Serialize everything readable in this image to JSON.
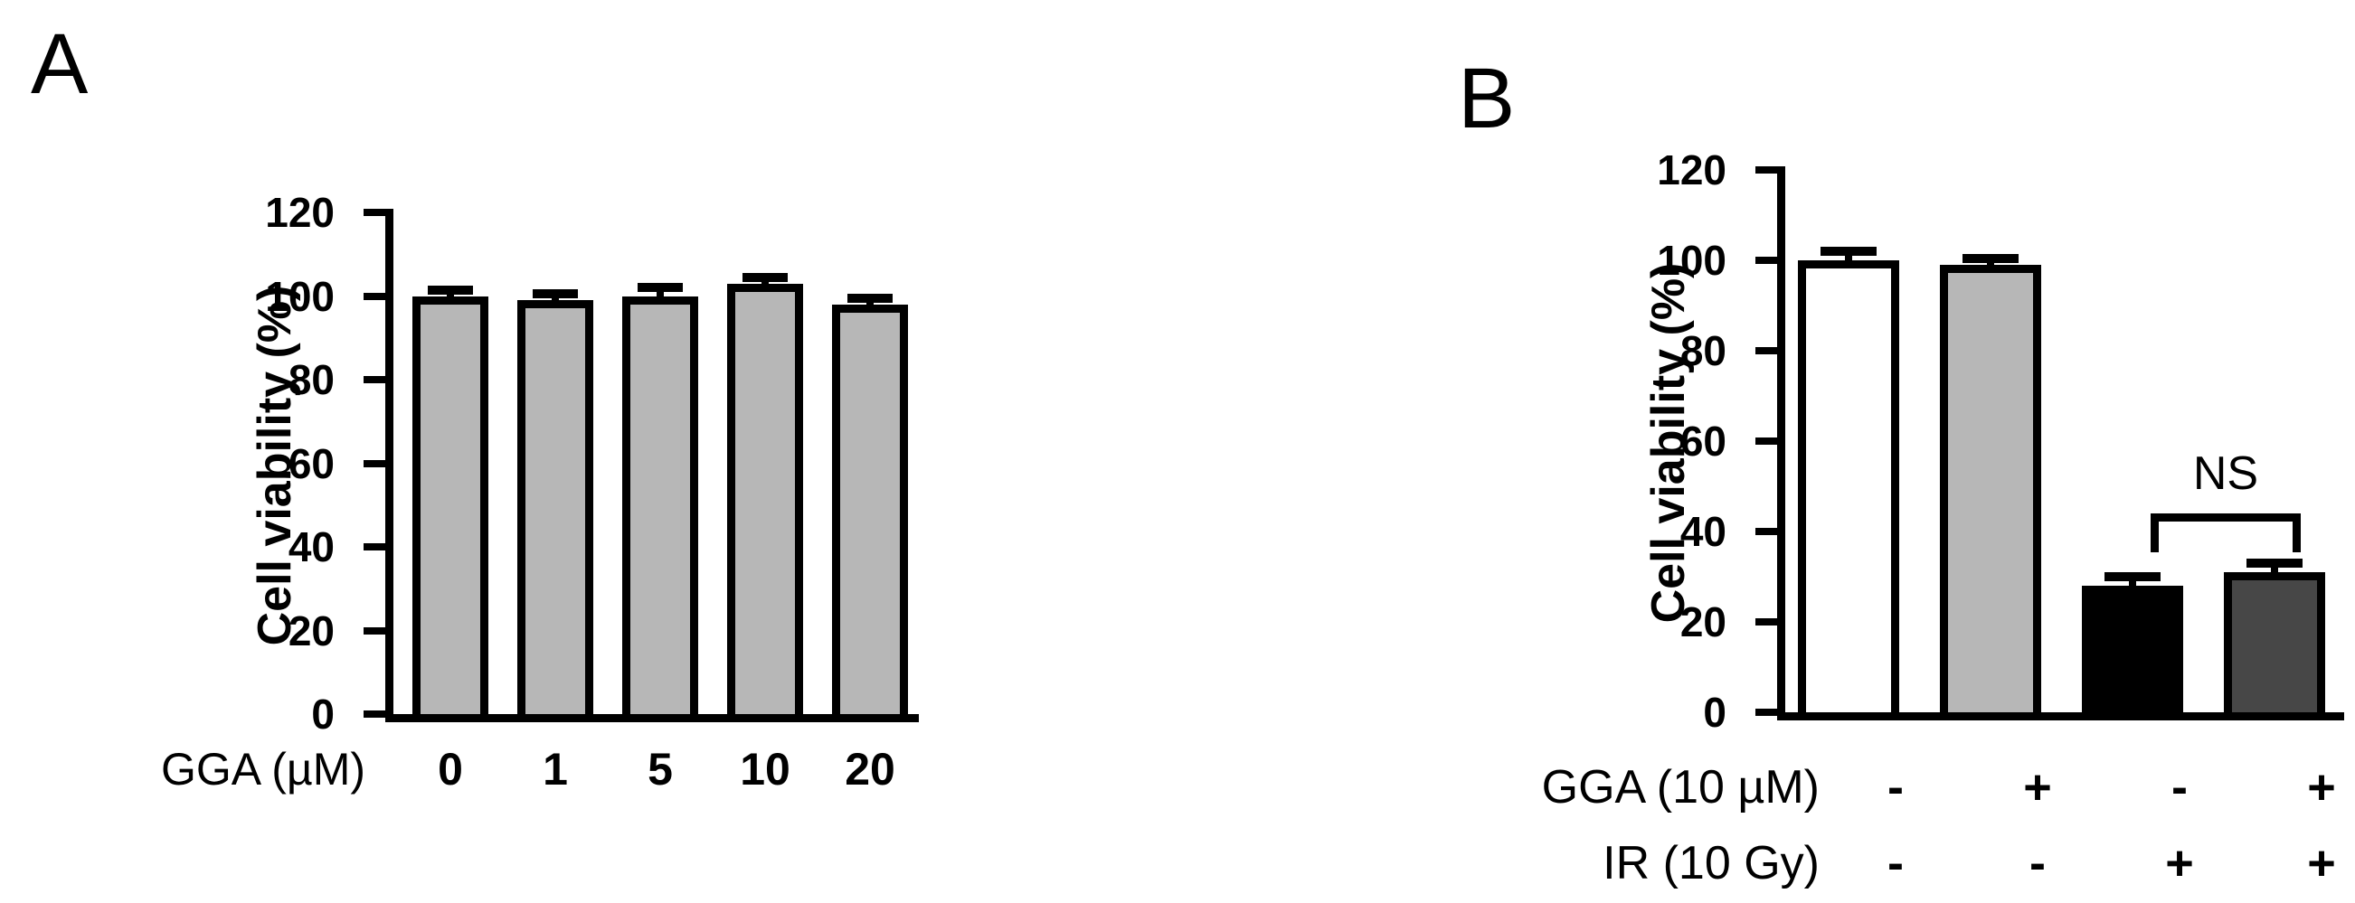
{
  "background": "#ffffff",
  "ink_color": "#000000",
  "chart_data": [
    {
      "type": "bar",
      "panel": "A",
      "title": "",
      "ylabel": "Cell viability (%)",
      "xlabel": "GGA (µM)",
      "categories": [
        "0",
        "1",
        "5",
        "10",
        "20"
      ],
      "values": [
        100,
        99,
        100,
        103,
        98
      ],
      "errors": [
        1.5,
        1.5,
        2,
        1.5,
        1.5
      ],
      "bar_colors": [
        "#b7b7b7",
        "#b7b7b7",
        "#b7b7b7",
        "#b7b7b7",
        "#b7b7b7"
      ],
      "bar_edge_color": "#000000",
      "ylim": [
        0,
        120
      ],
      "yticks": [
        0,
        20,
        40,
        60,
        80,
        100,
        120
      ],
      "grid": false,
      "legend": null
    },
    {
      "type": "bar",
      "panel": "B",
      "title": "",
      "ylabel": "Cell viability (%)",
      "condition_rows": [
        {
          "label": "GGA (10 µM)",
          "signs": [
            "-",
            "+",
            "-",
            "+"
          ]
        },
        {
          "label": "IR (10 Gy)",
          "signs": [
            "-",
            "-",
            "+",
            "+"
          ]
        }
      ],
      "values": [
        100,
        99,
        28,
        31
      ],
      "errors": [
        2,
        1.5,
        2,
        2
      ],
      "bar_colors": [
        "#ffffff",
        "#b7b7b7",
        "#000000",
        "#474747"
      ],
      "bar_edge_color": "#000000",
      "ylim": [
        0,
        120
      ],
      "yticks": [
        0,
        20,
        40,
        60,
        80,
        100,
        120
      ],
      "grid": false,
      "legend": null,
      "annotations": [
        {
          "text": "NS",
          "bars": [
            2,
            3
          ],
          "y": 44
        }
      ]
    }
  ]
}
